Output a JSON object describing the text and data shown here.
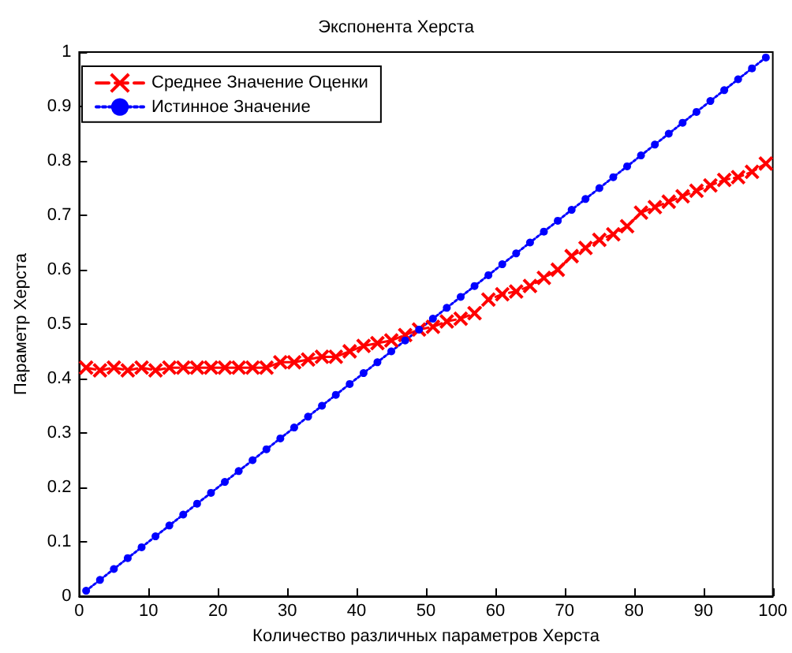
{
  "chart_data": {
    "type": "line",
    "title": "Экспонента Херста",
    "xlabel": "Количество различных параметров Херста",
    "ylabel": "Параметр Херста",
    "x": [
      1,
      3,
      5,
      7,
      9,
      11,
      13,
      15,
      17,
      19,
      21,
      23,
      25,
      27,
      29,
      31,
      33,
      35,
      37,
      39,
      41,
      43,
      45,
      47,
      49,
      51,
      53,
      55,
      57,
      59,
      61,
      63,
      65,
      67,
      69,
      71,
      73,
      75,
      77,
      79,
      81,
      83,
      85,
      87,
      89,
      91,
      93,
      95,
      97,
      99
    ],
    "series": [
      {
        "name": "Среднее Значение Оценки",
        "color": "#ff0000",
        "marker": "cross",
        "line_style": "dashed",
        "values": [
          0.42,
          0.415,
          0.42,
          0.415,
          0.42,
          0.415,
          0.42,
          0.42,
          0.42,
          0.42,
          0.42,
          0.42,
          0.42,
          0.42,
          0.43,
          0.43,
          0.435,
          0.44,
          0.44,
          0.45,
          0.46,
          0.465,
          0.47,
          0.48,
          0.49,
          0.495,
          0.505,
          0.51,
          0.52,
          0.545,
          0.555,
          0.56,
          0.57,
          0.585,
          0.6,
          0.625,
          0.64,
          0.655,
          0.665,
          0.68,
          0.705,
          0.715,
          0.725,
          0.735,
          0.745,
          0.755,
          0.765,
          0.77,
          0.78,
          0.795
        ]
      },
      {
        "name": "Истинное Значение",
        "color": "#0000ff",
        "marker": "circle",
        "line_style": "dotted",
        "values": [
          0.01,
          0.03,
          0.05,
          0.07,
          0.09,
          0.11,
          0.13,
          0.15,
          0.17,
          0.19,
          0.21,
          0.23,
          0.25,
          0.27,
          0.29,
          0.31,
          0.33,
          0.35,
          0.37,
          0.39,
          0.41,
          0.43,
          0.45,
          0.47,
          0.49,
          0.51,
          0.53,
          0.55,
          0.57,
          0.59,
          0.61,
          0.63,
          0.65,
          0.67,
          0.69,
          0.71,
          0.73,
          0.75,
          0.77,
          0.79,
          0.81,
          0.83,
          0.85,
          0.87,
          0.89,
          0.91,
          0.93,
          0.95,
          0.97,
          0.99
        ]
      }
    ],
    "xlim": [
      0,
      100
    ],
    "xticks": [
      0,
      10,
      20,
      30,
      40,
      50,
      60,
      70,
      80,
      90,
      100
    ],
    "ylim": [
      0,
      1
    ],
    "yticks": [
      0,
      0.1,
      0.2,
      0.3,
      0.4,
      0.5,
      0.6,
      0.7,
      0.8,
      0.9,
      1
    ],
    "grid": false,
    "legend": "top left"
  }
}
